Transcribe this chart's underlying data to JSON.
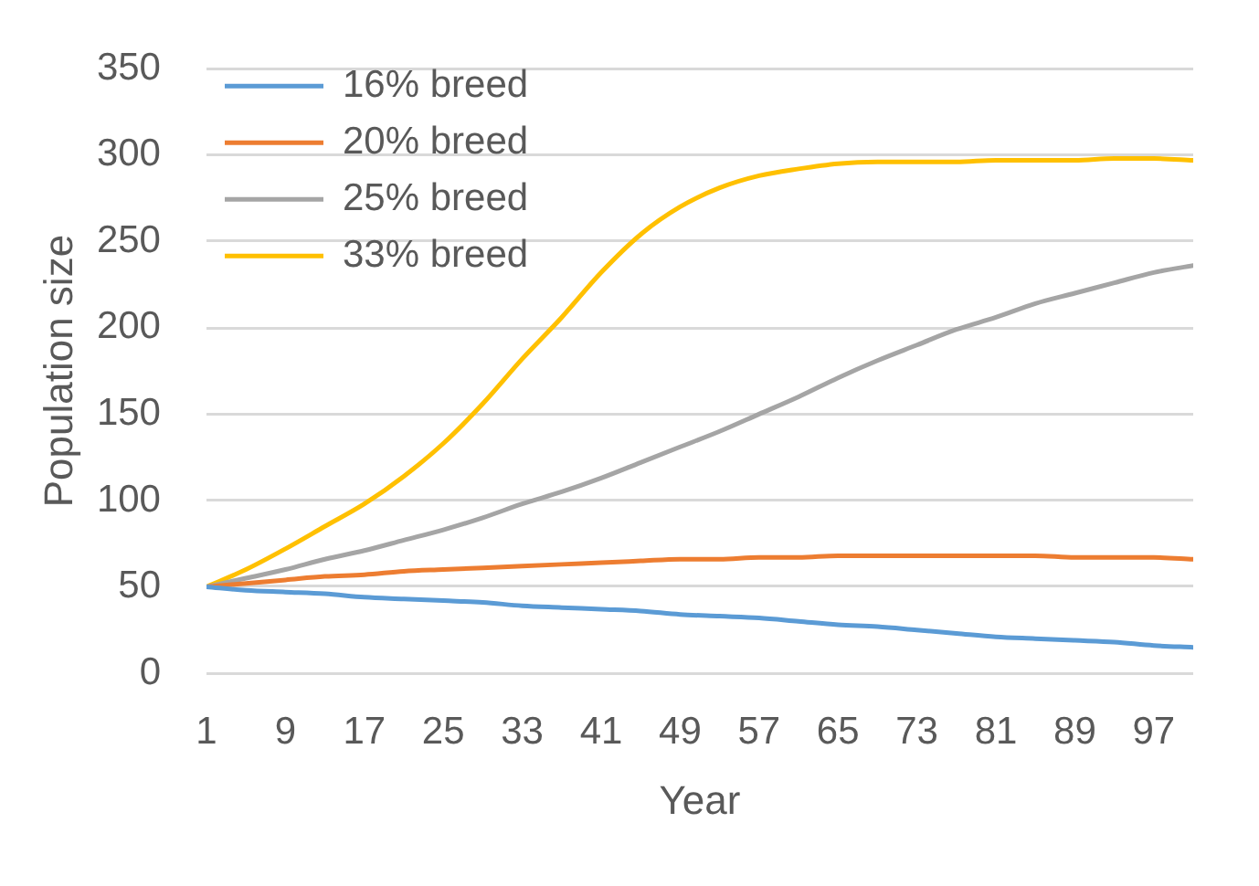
{
  "chart_data": {
    "type": "line",
    "xlabel": "Year",
    "ylabel": "Population size",
    "xlim": [
      1,
      101
    ],
    "xticks": [
      1,
      9,
      17,
      25,
      33,
      41,
      49,
      57,
      65,
      73,
      81,
      89,
      97
    ],
    "ylim": [
      0,
      350
    ],
    "yticks": [
      0,
      50,
      100,
      150,
      200,
      250,
      300,
      350
    ],
    "grid": "y",
    "legend": "top left",
    "marker": "none",
    "line_style": "solid",
    "series": [
      {
        "name": "16% breed",
        "color": "#5b9bd5",
        "x": [
          1,
          5,
          9,
          13,
          17,
          21,
          25,
          29,
          33,
          37,
          41,
          45,
          49,
          53,
          57,
          61,
          65,
          69,
          73,
          77,
          81,
          85,
          89,
          93,
          97,
          101
        ],
        "values": [
          50,
          48,
          47,
          46,
          44,
          43,
          42,
          41,
          39,
          38,
          37,
          36,
          34,
          33,
          32,
          30,
          28,
          27,
          25,
          23,
          21,
          20,
          19,
          18,
          16,
          15
        ]
      },
      {
        "name": "20% breed",
        "color": "#ed7d31",
        "x": [
          1,
          5,
          9,
          13,
          17,
          21,
          25,
          29,
          33,
          37,
          41,
          45,
          49,
          53,
          57,
          61,
          65,
          69,
          73,
          77,
          81,
          85,
          89,
          93,
          97,
          101
        ],
        "values": [
          50,
          52,
          54,
          56,
          57,
          59,
          60,
          61,
          62,
          63,
          64,
          65,
          66,
          66,
          67,
          67,
          68,
          68,
          68,
          68,
          68,
          68,
          67,
          67,
          67,
          66
        ]
      },
      {
        "name": "25% breed",
        "color": "#a5a5a5",
        "x": [
          1,
          5,
          9,
          13,
          17,
          21,
          25,
          29,
          33,
          37,
          41,
          45,
          49,
          53,
          57,
          61,
          65,
          69,
          73,
          77,
          81,
          85,
          89,
          93,
          97,
          101
        ],
        "values": [
          50,
          55,
          60,
          66,
          71,
          77,
          83,
          90,
          98,
          105,
          113,
          122,
          131,
          140,
          150,
          160,
          171,
          181,
          190,
          199,
          206,
          214,
          220,
          226,
          232,
          236
        ]
      },
      {
        "name": "33% breed",
        "color": "#ffc000",
        "x": [
          1,
          5,
          9,
          13,
          17,
          21,
          25,
          29,
          33,
          37,
          41,
          45,
          49,
          53,
          57,
          61,
          65,
          69,
          73,
          77,
          81,
          85,
          89,
          93,
          97,
          101
        ],
        "values": [
          50,
          60,
          72,
          85,
          98,
          114,
          133,
          156,
          182,
          206,
          232,
          254,
          270,
          281,
          288,
          292,
          295,
          296,
          296,
          296,
          297,
          297,
          297,
          298,
          298,
          297
        ]
      }
    ]
  }
}
